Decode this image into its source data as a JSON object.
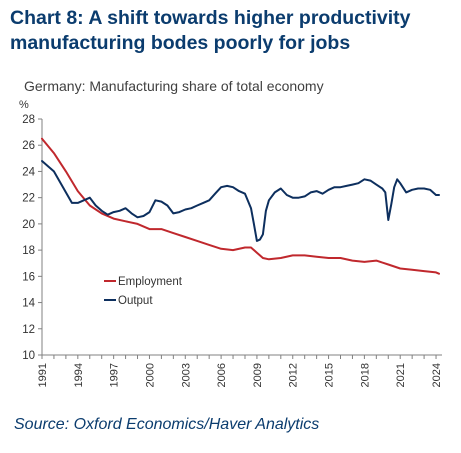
{
  "title": "Chart 8: A shift towards higher productivity manufacturing bodes poorly for jobs",
  "subtitle": "Germany: Manufacturing share of total economy",
  "source": "Source: Oxford Economics/Haver Analytics",
  "colors": {
    "title": "#0b3c6e",
    "employment": "#c0282d",
    "output": "#0d2f5e",
    "axis": "#808080"
  },
  "chart_data": {
    "type": "line",
    "title": "Chart 8: A shift towards higher productivity manufacturing bodes poorly for jobs",
    "subtitle": "Germany: Manufacturing share of total economy",
    "ylabel": "%",
    "xlabel": "",
    "ylim": [
      10,
      28
    ],
    "xlim": [
      1991,
      2024.5
    ],
    "y_ticks": [
      "10",
      "12",
      "14",
      "16",
      "18",
      "20",
      "22",
      "24",
      "26",
      "28"
    ],
    "x_ticks": [
      "1991",
      "1994",
      "1997",
      "2000",
      "2003",
      "2006",
      "2009",
      "2012",
      "2015",
      "2018",
      "2021",
      "2024"
    ],
    "grid": false,
    "legend": {
      "placement": "center-left"
    },
    "series": [
      {
        "name": "Employment",
        "color": "#c0282d",
        "x": [
          1991.0,
          1992.0,
          1993.0,
          1994.0,
          1995.0,
          1996.0,
          1997.0,
          1998.0,
          1999.0,
          2000.0,
          2001.0,
          2002.0,
          2003.0,
          2004.0,
          2005.0,
          2006.0,
          2007.0,
          2008.0,
          2008.5,
          2009.0,
          2009.5,
          2010.0,
          2011.0,
          2012.0,
          2013.0,
          2014.0,
          2015.0,
          2016.0,
          2017.0,
          2018.0,
          2019.0,
          2020.0,
          2021.0,
          2022.0,
          2023.0,
          2024.0,
          2024.25
        ],
        "y": [
          26.5,
          25.4,
          24.0,
          22.5,
          21.4,
          20.8,
          20.4,
          20.2,
          20.0,
          19.6,
          19.6,
          19.3,
          19.0,
          18.7,
          18.4,
          18.1,
          18.0,
          18.2,
          18.2,
          17.8,
          17.4,
          17.3,
          17.4,
          17.6,
          17.6,
          17.5,
          17.4,
          17.4,
          17.2,
          17.1,
          17.2,
          16.9,
          16.6,
          16.5,
          16.4,
          16.3,
          16.2
        ]
      },
      {
        "name": "Output",
        "color": "#0d2f5e",
        "x": [
          1991.0,
          1991.5,
          1992.0,
          1992.5,
          1993.0,
          1993.5,
          1994.0,
          1994.5,
          1995.0,
          1995.5,
          1996.0,
          1996.5,
          1997.0,
          1997.5,
          1998.0,
          1998.5,
          1999.0,
          1999.5,
          2000.0,
          2000.5,
          2001.0,
          2001.5,
          2002.0,
          2002.5,
          2003.0,
          2003.5,
          2004.0,
          2004.5,
          2005.0,
          2005.5,
          2006.0,
          2006.5,
          2007.0,
          2007.5,
          2008.0,
          2008.5,
          2008.75,
          2009.0,
          2009.25,
          2009.5,
          2009.75,
          2010.0,
          2010.5,
          2011.0,
          2011.5,
          2012.0,
          2012.5,
          2013.0,
          2013.5,
          2014.0,
          2014.5,
          2015.0,
          2015.5,
          2016.0,
          2016.5,
          2017.0,
          2017.5,
          2018.0,
          2018.5,
          2019.0,
          2019.5,
          2019.75,
          2020.0,
          2020.25,
          2020.5,
          2020.75,
          2021.0,
          2021.5,
          2022.0,
          2022.5,
          2023.0,
          2023.5,
          2024.0,
          2024.25
        ],
        "y": [
          24.8,
          24.4,
          24.0,
          23.2,
          22.4,
          21.6,
          21.6,
          21.8,
          22.0,
          21.4,
          21.0,
          20.7,
          20.9,
          21.0,
          21.2,
          20.8,
          20.5,
          20.6,
          20.9,
          21.8,
          21.7,
          21.4,
          20.8,
          20.9,
          21.1,
          21.2,
          21.4,
          21.6,
          21.8,
          22.3,
          22.8,
          22.9,
          22.8,
          22.5,
          22.3,
          21.2,
          20.0,
          18.7,
          18.8,
          19.2,
          21.0,
          21.8,
          22.4,
          22.7,
          22.2,
          22.0,
          22.0,
          22.1,
          22.4,
          22.5,
          22.3,
          22.6,
          22.8,
          22.8,
          22.9,
          23.0,
          23.1,
          23.4,
          23.3,
          23.0,
          22.7,
          22.4,
          20.3,
          21.5,
          22.8,
          23.4,
          23.1,
          22.4,
          22.6,
          22.7,
          22.7,
          22.6,
          22.2,
          22.2
        ]
      }
    ]
  }
}
